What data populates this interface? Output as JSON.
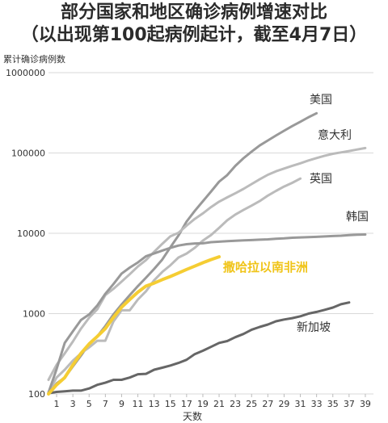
{
  "chart_data": {
    "type": "line",
    "title": "部分国家和地区确诊病例增速对比",
    "subtitle": "（以出现第100起病例起计，截至4月7日）",
    "ylabel": "累计确诊病例数",
    "xlabel": "天数",
    "y_scale": "log",
    "ylim": [
      100,
      1000000
    ],
    "xlim": [
      0,
      40
    ],
    "y_ticks": [
      "100",
      "1000",
      "10000",
      "100000",
      "1000000"
    ],
    "x_ticks": [
      "1",
      "3",
      "5",
      "7",
      "9",
      "11",
      "13",
      "15",
      "17",
      "19",
      "21",
      "23",
      "25",
      "27",
      "29",
      "31",
      "33",
      "35",
      "37",
      "39"
    ],
    "grid": "horizontal",
    "series": [
      {
        "name": "美国",
        "color": "#999999",
        "x": [
          0,
          1,
          2,
          3,
          4,
          5,
          6,
          7,
          8,
          9,
          10,
          11,
          12,
          13,
          14,
          15,
          16,
          17,
          18,
          19,
          20,
          21,
          22,
          23,
          24,
          25,
          26,
          27,
          28,
          29,
          30,
          31,
          32,
          33
        ],
        "y": [
          100,
          135,
          160,
          220,
          300,
          420,
          520,
          700,
          980,
          1300,
          1700,
          2200,
          2800,
          3600,
          4700,
          6700,
          9400,
          14000,
          19000,
          25000,
          33000,
          44000,
          53000,
          69000,
          86000,
          104000,
          124000,
          143000,
          165000,
          189000,
          216000,
          245000,
          278000,
          312000
        ]
      },
      {
        "name": "意大利",
        "color": "#bbbbbb",
        "x": [
          0,
          1,
          2,
          3,
          4,
          5,
          6,
          7,
          8,
          9,
          10,
          11,
          12,
          13,
          14,
          15,
          16,
          17,
          18,
          19,
          20,
          21,
          22,
          23,
          24,
          25,
          26,
          27,
          28,
          29,
          30,
          31,
          32,
          33,
          34,
          35,
          36,
          37,
          38,
          39
        ],
        "y": [
          150,
          230,
          320,
          450,
          650,
          890,
          1130,
          1700,
          2040,
          2500,
          3090,
          3860,
          4640,
          5880,
          7380,
          9170,
          10150,
          12460,
          15110,
          17660,
          21160,
          24750,
          27980,
          31510,
          35710,
          41040,
          47020,
          53580,
          59140,
          63930,
          69180,
          74390,
          80590,
          86500,
          92470,
          97690,
          101740,
          105790,
          110570,
          115240
        ]
      },
      {
        "name": "英国",
        "color": "#bbbbbb",
        "x": [
          0,
          1,
          2,
          3,
          4,
          5,
          6,
          7,
          8,
          9,
          10,
          11,
          12,
          13,
          14,
          15,
          16,
          17,
          18,
          19,
          20,
          21,
          22,
          23,
          24,
          25,
          26,
          27,
          28,
          29,
          30,
          31
        ],
        "y": [
          105,
          160,
          200,
          260,
          320,
          380,
          460,
          460,
          800,
          1100,
          1100,
          1500,
          1900,
          2600,
          3300,
          4000,
          5000,
          5600,
          6600,
          8100,
          9500,
          11700,
          14500,
          17100,
          19500,
          22100,
          25200,
          29500,
          33700,
          38200,
          42500,
          48000
        ]
      },
      {
        "name": "韩国",
        "color": "#999999",
        "x": [
          0,
          1,
          2,
          3,
          4,
          5,
          6,
          7,
          8,
          9,
          10,
          11,
          12,
          13,
          14,
          15,
          16,
          17,
          18,
          19,
          20,
          21,
          22,
          23,
          24,
          25,
          26,
          27,
          28,
          29,
          30,
          31,
          32,
          33,
          34,
          35,
          36,
          37,
          38,
          39
        ],
        "y": [
          104,
          204,
          433,
          602,
          833,
          977,
          1260,
          1766,
          2337,
          3150,
          3736,
          4335,
          5186,
          5621,
          6088,
          6593,
          7041,
          7313,
          7478,
          7513,
          7755,
          7869,
          7979,
          8086,
          8162,
          8236,
          8320,
          8413,
          8565,
          8652,
          8799,
          8897,
          8961,
          9037,
          9137,
          9241,
          9332,
          9478,
          9583,
          9661
        ]
      },
      {
        "name": "撒哈拉以南非洲",
        "color": "#f5cd33",
        "x": [
          0,
          1,
          2,
          3,
          4,
          5,
          6,
          7,
          8,
          9,
          10,
          11,
          12,
          13,
          14,
          15,
          16,
          17,
          18,
          19,
          20,
          21
        ],
        "y": [
          100,
          130,
          160,
          230,
          320,
          420,
          520,
          650,
          900,
          1200,
          1500,
          1850,
          2200,
          2400,
          2650,
          2900,
          3200,
          3550,
          3900,
          4300,
          4700,
          5100
        ]
      },
      {
        "name": "新加坡",
        "color": "#666666",
        "x": [
          0,
          1,
          2,
          3,
          4,
          5,
          6,
          7,
          8,
          9,
          10,
          11,
          12,
          13,
          14,
          15,
          16,
          17,
          18,
          19,
          20,
          21,
          22,
          23,
          24,
          25,
          26,
          27,
          28,
          29,
          30,
          31,
          32,
          33,
          34,
          35,
          36,
          37
        ],
        "y": [
          102,
          106,
          108,
          110,
          110,
          117,
          130,
          138,
          150,
          150,
          160,
          176,
          178,
          200,
          212,
          226,
          243,
          266,
          313,
          345,
          385,
          432,
          455,
          509,
          558,
          631,
          683,
          732,
          802,
          844,
          879,
          926,
          1000,
          1049,
          1114,
          1189,
          1309,
          1375
        ]
      }
    ]
  }
}
